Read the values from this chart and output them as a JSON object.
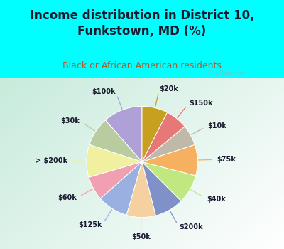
{
  "title": "Income distribution in District 10,\nFunkstown, MD (%)",
  "subtitle": "Black or African American residents",
  "title_color": "#1a1a2e",
  "subtitle_color": "#b05a28",
  "bg_cyan": "#00ffff",
  "watermark": "City-Data.com",
  "labels": [
    "$100k",
    "$30k",
    "> $200k",
    "$60k",
    "$125k",
    "$50k",
    "$200k",
    "$40k",
    "$75k",
    "$10k",
    "$150k",
    "$20k"
  ],
  "values": [
    11.5,
    8.5,
    9.5,
    7.0,
    9.0,
    8.5,
    8.5,
    8.5,
    9.0,
    6.0,
    6.5,
    7.5
  ],
  "colors": [
    "#b0a0d8",
    "#b8cca0",
    "#f0f0a0",
    "#f0a0b0",
    "#9ab0e0",
    "#f5d0a0",
    "#8090c8",
    "#c0e880",
    "#f5b060",
    "#c0b8a8",
    "#e87878",
    "#c8a020"
  ],
  "start_angle": 90,
  "label_fontsize": 7,
  "title_fontsize": 12,
  "subtitle_fontsize": 9,
  "label_color": "#1a1a2e"
}
